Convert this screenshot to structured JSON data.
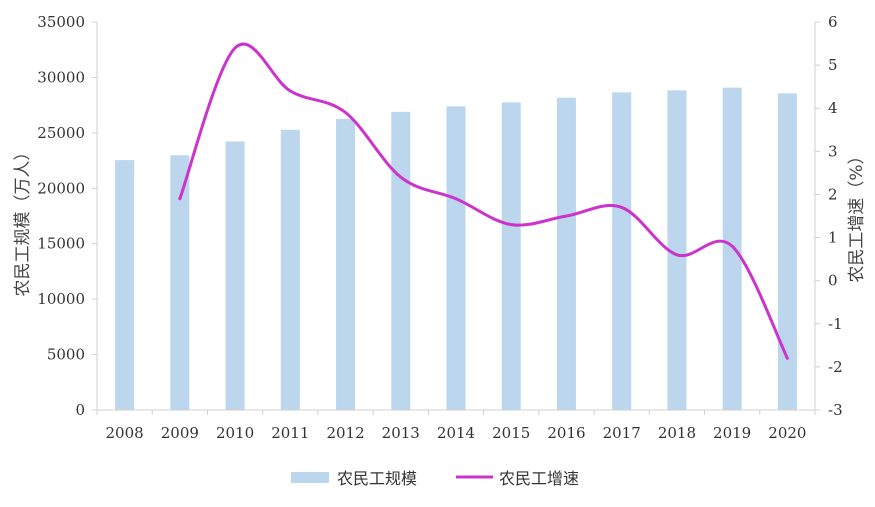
{
  "chart_data": {
    "type": "bar",
    "categories": [
      "2008",
      "2009",
      "2010",
      "2011",
      "2012",
      "2013",
      "2014",
      "2015",
      "2016",
      "2017",
      "2018",
      "2019",
      "2020"
    ],
    "series": [
      {
        "name": "农民工规模",
        "type": "bar",
        "axis": "left",
        "color": "#bcd6ee",
        "values": [
          22542,
          22978,
          24223,
          25278,
          26261,
          26894,
          27395,
          27747,
          28171,
          28652,
          28836,
          29077,
          28560
        ]
      },
      {
        "name": "农民工增速",
        "type": "line",
        "axis": "right",
        "color": "#cc33cc",
        "values": [
          null,
          1.9,
          5.4,
          4.4,
          3.9,
          2.4,
          1.9,
          1.3,
          1.5,
          1.7,
          0.6,
          0.8,
          -1.8
        ]
      }
    ],
    "ylabel": "农民工规模（万人）",
    "y2label": "农民工增速（%）",
    "ylim": [
      0,
      35000
    ],
    "y2lim": [
      -3,
      6
    ],
    "yticks": [
      "0",
      "5000",
      "10000",
      "15000",
      "20000",
      "25000",
      "30000",
      "35000"
    ],
    "y2ticks": [
      "-3",
      "-2",
      "-1",
      "0",
      "1",
      "2",
      "3",
      "4",
      "5",
      "6"
    ],
    "legend_position": "bottom",
    "grid": false
  }
}
